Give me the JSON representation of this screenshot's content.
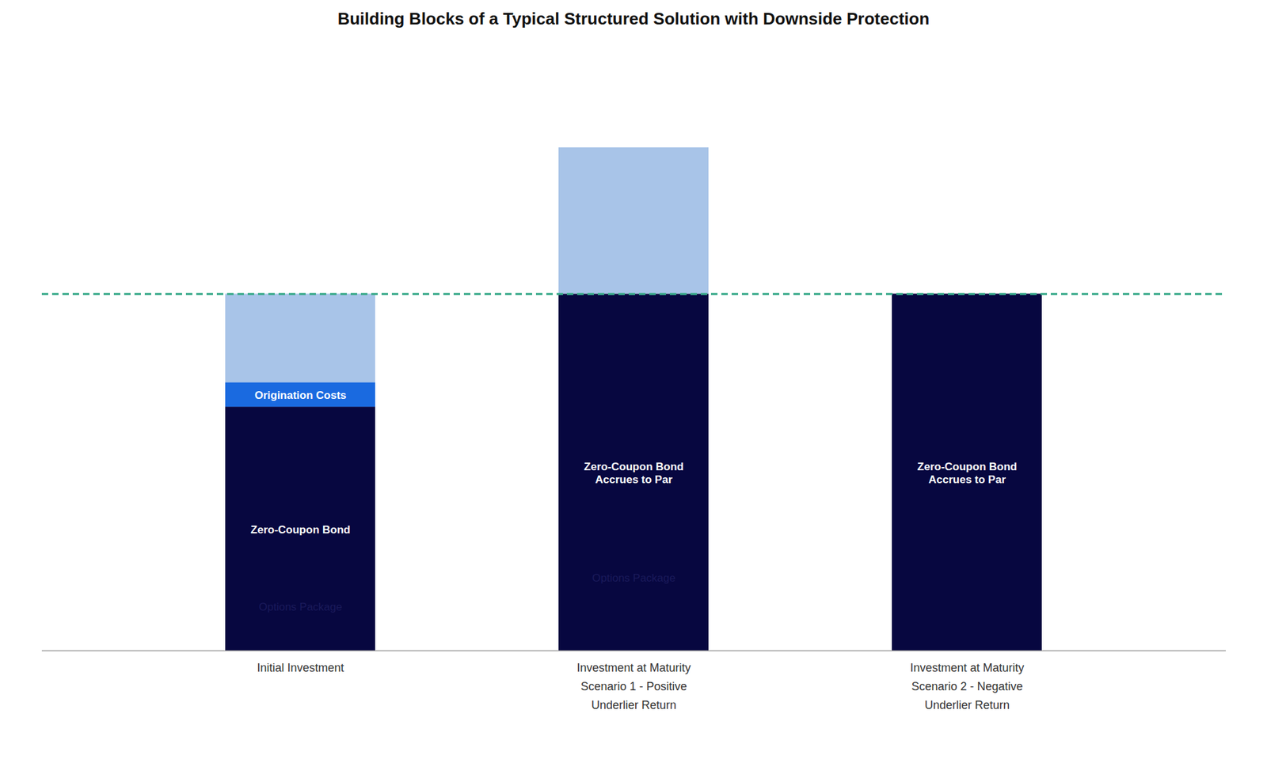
{
  "chart_data": {
    "type": "bar",
    "title": "Building Blocks of a Typical Structured Solution with Downside Protection",
    "stacked": true,
    "categories": [
      "Initial Investment",
      "Investment at Maturity\nScenario 1 - Positive\nUnderlier Return",
      "Investment at Maturity\nScenario 2 - Negative\nUnderlier Return"
    ],
    "series": [
      {
        "name": "Zero-Coupon Bond",
        "color": "#070740",
        "values": [
          5.5,
          null,
          null
        ]
      },
      {
        "name": "Zero-Coupon Bond\nAccrues to Par",
        "color": "#070740",
        "values": [
          null,
          8.05,
          8.05
        ]
      },
      {
        "name": "Origination Costs",
        "color": "#1a6ae0",
        "values": [
          0.55,
          null,
          null
        ]
      },
      {
        "name": "Options Package",
        "color": "#a8c4e8",
        "values": [
          2.0,
          3.3,
          null
        ]
      }
    ],
    "par_line": {
      "value": 8.05,
      "color": "#3aaa8a",
      "line_style": "dashed"
    },
    "ylim": [
      0,
      13.5
    ],
    "tick_labels": "x",
    "grid": false
  }
}
